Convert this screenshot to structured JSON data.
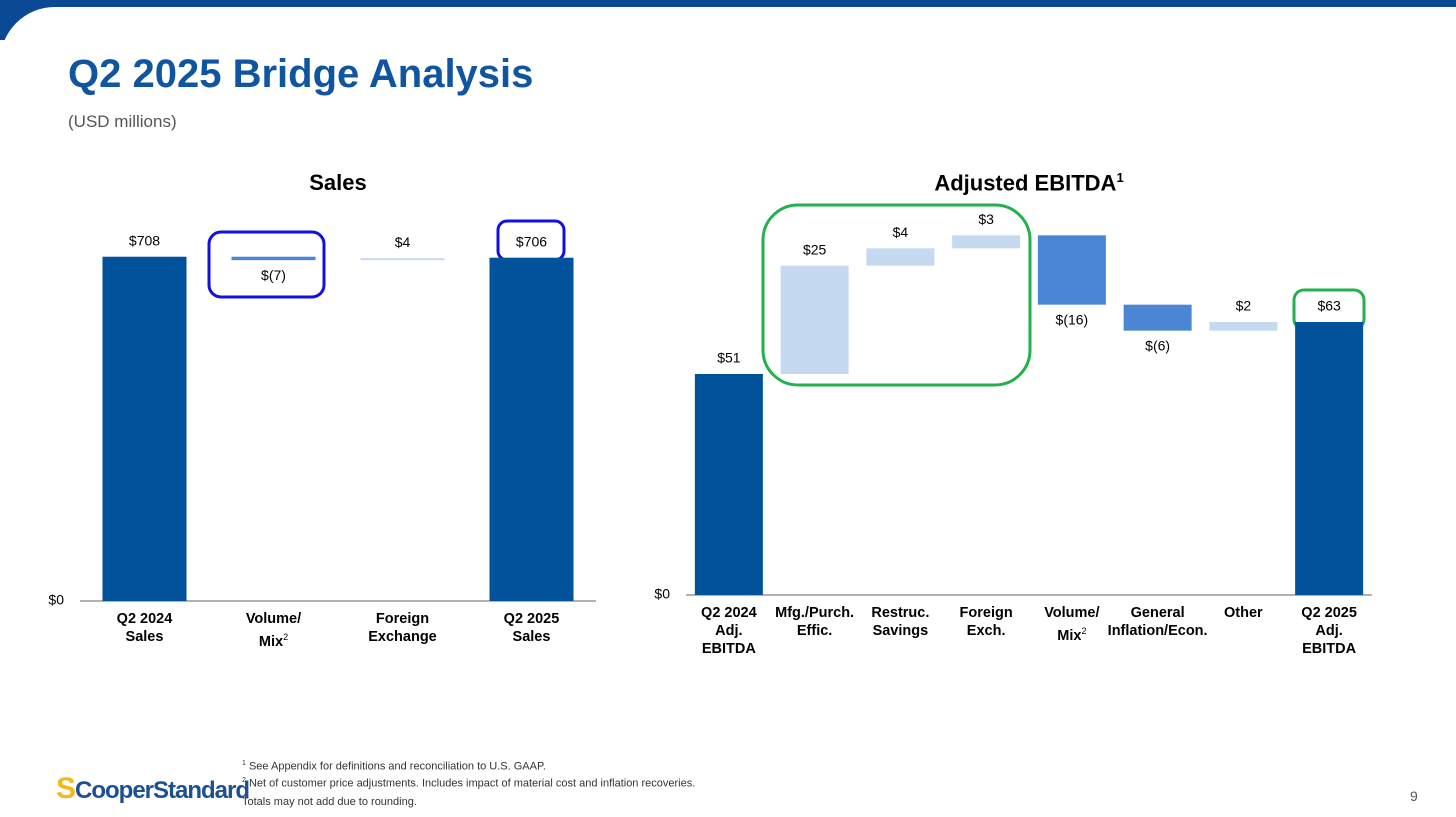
{
  "header": {
    "title": "Q2 2025 Bridge Analysis",
    "subtitle": "(USD millions)"
  },
  "chart_data": [
    {
      "type": "waterfall",
      "title": "Sales",
      "title_note": null,
      "categories": [
        "Q2 2024\nSales",
        "Volume/\nMix",
        "Foreign\nExchange",
        "Q2 2025\nSales"
      ],
      "category_notes": [
        null,
        "2",
        null,
        null
      ],
      "kinds": [
        "total",
        "delta",
        "delta",
        "total"
      ],
      "values": [
        708,
        -7,
        4,
        706
      ],
      "value_labels": [
        "$708",
        "$(7)",
        "$4",
        "$706"
      ],
      "colors": {
        "total": "#00529b",
        "increase": "#c5d9f1",
        "decrease": "#4a86d4"
      },
      "ylim": [
        0,
        800
      ],
      "yticks": [
        {
          "value": 0,
          "label": "$0"
        }
      ],
      "grid": false
    },
    {
      "type": "waterfall",
      "title": "Adjusted EBITDA",
      "title_note": "1",
      "categories": [
        "Q2 2024\nAdj.\nEBITDA",
        "Mfg./Purch.\nEffic.",
        "Restruc.\nSavings",
        "Foreign\nExch.",
        "Volume/\nMix",
        "General\nInflation/Econ.",
        "Other",
        "Q2 2025\nAdj.\nEBITDA"
      ],
      "category_notes": [
        null,
        null,
        null,
        null,
        "2",
        null,
        null,
        null
      ],
      "kinds": [
        "total",
        "delta",
        "delta",
        "delta",
        "delta",
        "delta",
        "delta",
        "total"
      ],
      "values": [
        51,
        25,
        4,
        3,
        -16,
        -6,
        2,
        63
      ],
      "value_labels": [
        "$51",
        "$25",
        "$4",
        "$3",
        "$(16)",
        "$(6)",
        "$2",
        "$63"
      ],
      "colors": {
        "total": "#00529b",
        "increase": "#c5d9f1",
        "decrease": "#4a86d4"
      },
      "ylim": [
        0,
        90
      ],
      "yticks": [
        {
          "value": 0,
          "label": "$0"
        }
      ],
      "grid": false
    }
  ],
  "footnotes": [
    {
      "mark": "1",
      "text": "See Appendix for definitions and reconciliation to U.S. GAAP."
    },
    {
      "mark": "2",
      "text": "Net of customer price adjustments. Includes impact of material cost and inflation recoveries."
    }
  ],
  "note": "Totals may not add due to rounding.",
  "logo": "CooperStandard",
  "page_number": "9"
}
